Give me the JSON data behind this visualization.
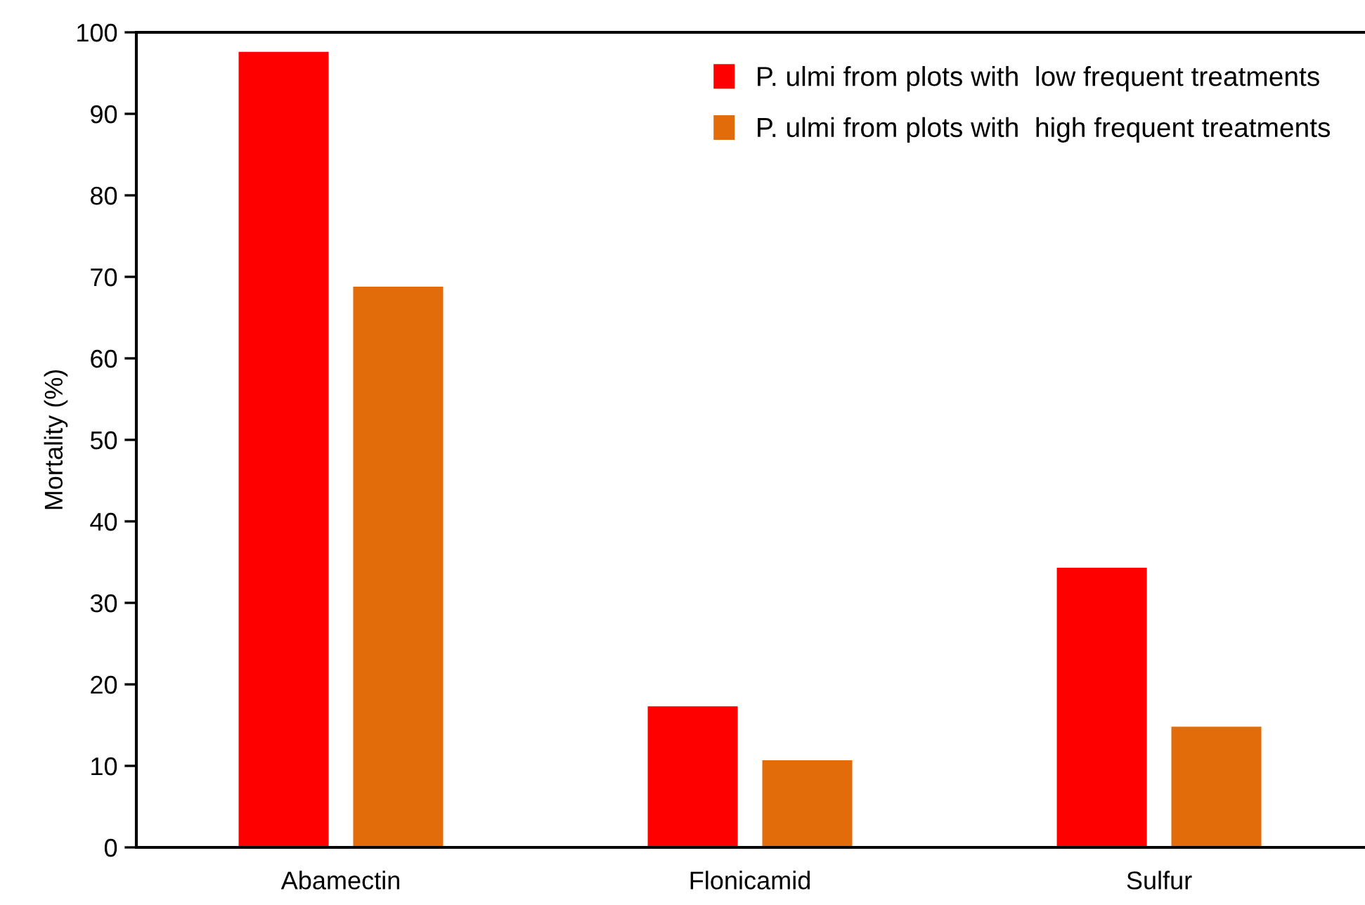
{
  "chart_data": {
    "type": "bar",
    "ylabel": "Mortality (%)",
    "categories": [
      "Abamectin",
      "Flonicamid",
      "Sulfur"
    ],
    "series": [
      {
        "name": "P. ulmi from plots with  low frequent treatments",
        "color": "#fe0000",
        "values": [
          97.6,
          17.3,
          34.3
        ]
      },
      {
        "name": "P. ulmi from plots with  high frequent treatments",
        "color": "#e36c0a",
        "values": [
          68.8,
          10.7,
          14.8
        ]
      }
    ],
    "ylim": [
      0,
      100
    ],
    "yticks": [
      0,
      10,
      20,
      30,
      40,
      50,
      60,
      70,
      80,
      90,
      100
    ],
    "grid": false,
    "legend": "top right"
  }
}
